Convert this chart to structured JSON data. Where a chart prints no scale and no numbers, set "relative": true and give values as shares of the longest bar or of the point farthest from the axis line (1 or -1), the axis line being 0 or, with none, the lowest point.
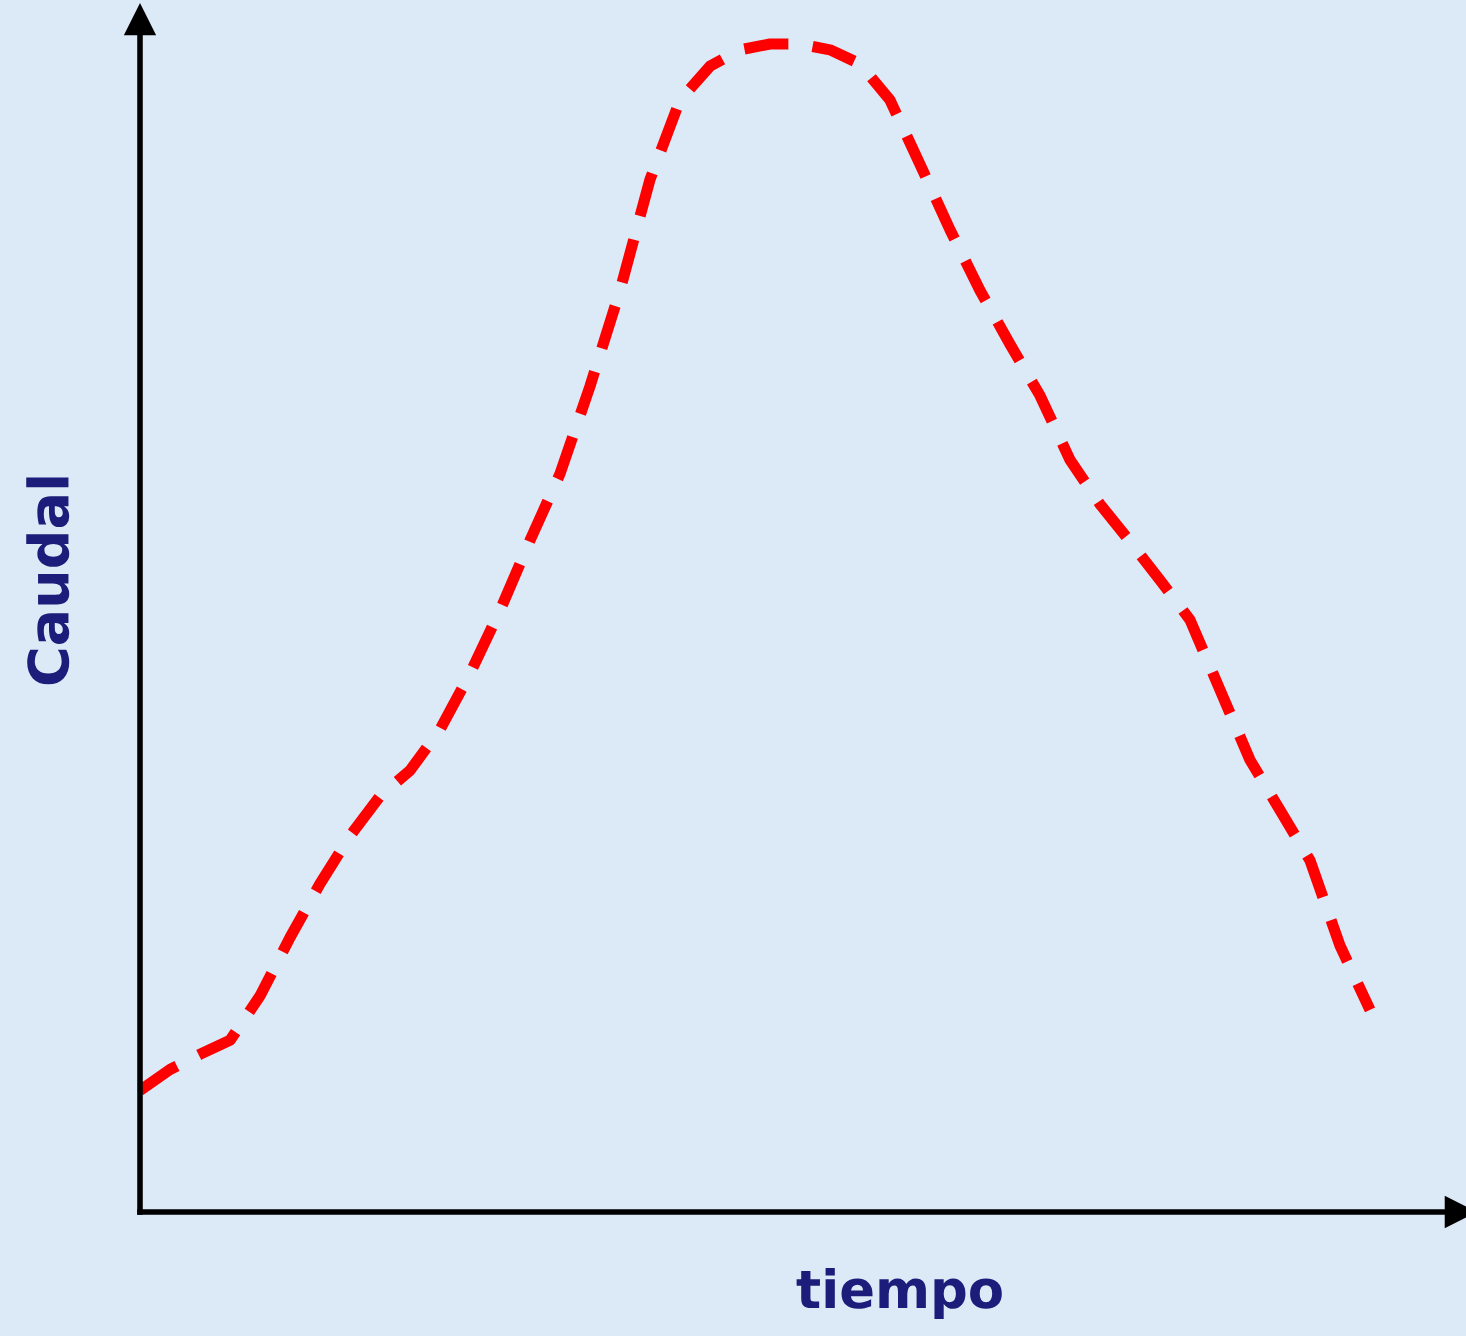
{
  "chart_data": {
    "type": "line",
    "xlabel": "tiempo",
    "ylabel": "Caudal",
    "relative": true,
    "line_style": "dashed",
    "categories": [
      null,
      null,
      null,
      null,
      null,
      null,
      null,
      null,
      null,
      null,
      null,
      null,
      null,
      null,
      null,
      null,
      null,
      null,
      null,
      null,
      null,
      null,
      null,
      null,
      null,
      null,
      null,
      null,
      null,
      null,
      null,
      null,
      null,
      null,
      null,
      null,
      null,
      null,
      null,
      null,
      null,
      null
    ],
    "series": [
      {
        "color": "#ff0000",
        "values": [
          0.104,
          0.122,
          0.135,
          0.147,
          0.185,
          0.235,
          0.281,
          0.322,
          0.356,
          0.378,
          0.413,
          0.461,
          0.515,
          0.575,
          0.632,
          0.707,
          0.789,
          0.884,
          0.952,
          0.981,
          0.995,
          1,
          1,
          0.995,
          0.983,
          0.952,
          0.897,
          0.841,
          0.789,
          0.743,
          0.699,
          0.644,
          0.606,
          0.574,
          0.541,
          0.507,
          0.447,
          0.387,
          0.344,
          0.301,
          0.228,
          0.173
        ]
      }
    ]
  }
}
